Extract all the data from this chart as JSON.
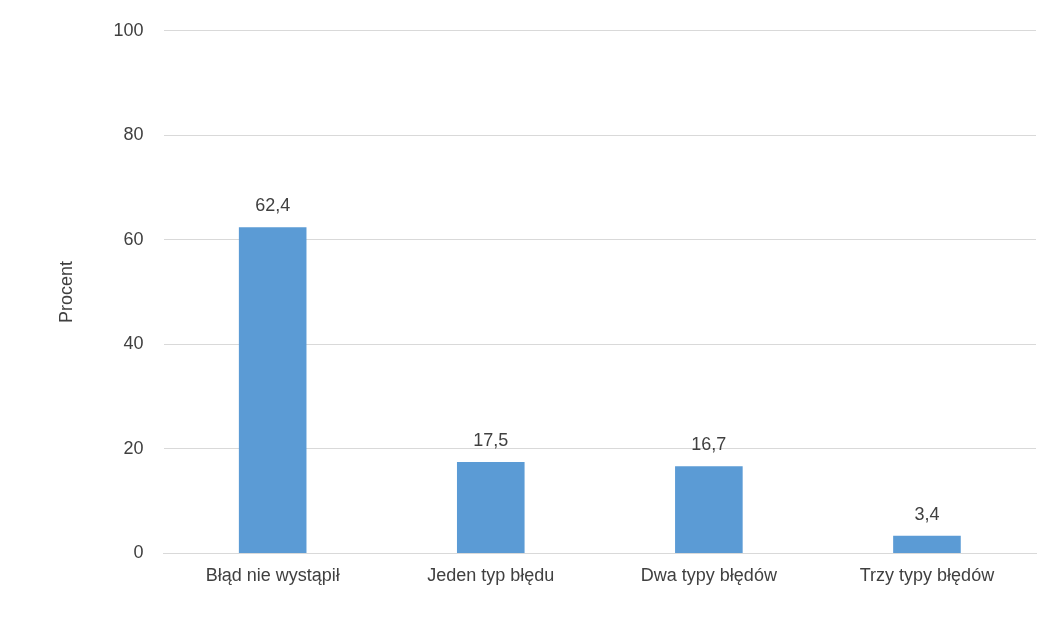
{
  "chart_data": {
    "type": "bar",
    "ylabel": "Procent",
    "categories": [
      "Błąd nie wystąpił",
      "Jeden typ błędu",
      "Dwa typy błędów",
      "Trzy typy błędów"
    ],
    "values": [
      62.4,
      17.5,
      16.7,
      3.4
    ],
    "value_labels": [
      "62,4",
      "17,5",
      "16,7",
      "3,4"
    ],
    "color": "#5b9bd5",
    "ylim": [
      0,
      100
    ],
    "yticks": [
      0,
      20,
      40,
      60,
      80,
      100
    ],
    "grid": "y",
    "legend": false
  }
}
